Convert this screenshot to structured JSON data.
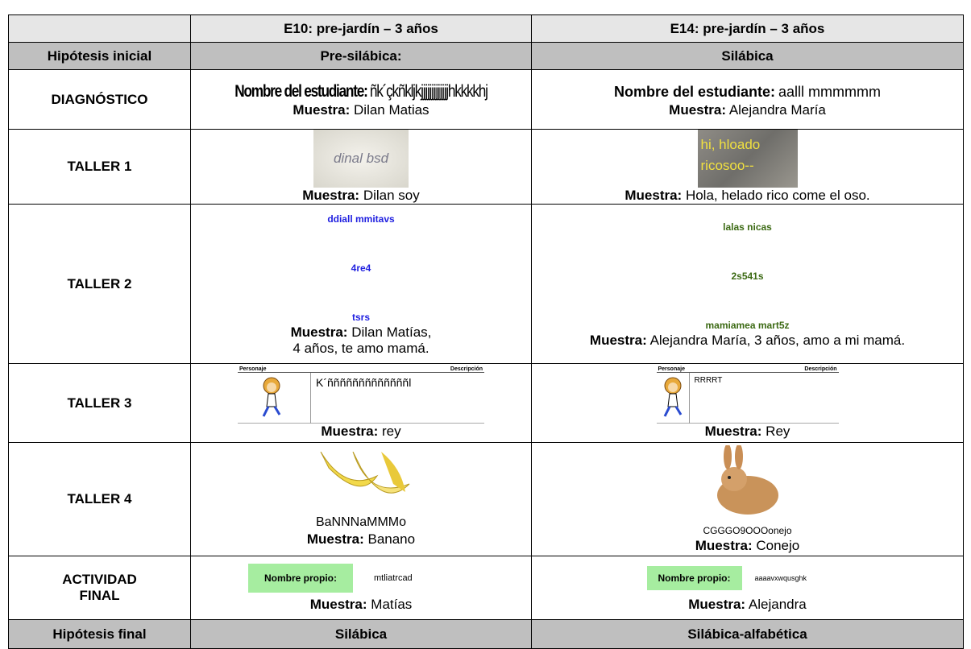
{
  "table": {
    "header": [
      "E10: pre-jardín – 3 años",
      "E14: pre-jardín – 3 años"
    ],
    "initial_hypothesis": {
      "label": "Hipótesis inicial",
      "values": [
        "Pre-silábica:",
        "Silábica"
      ]
    },
    "sample_label": "Muestra:",
    "rows": [
      {
        "label": "DIAGNÓSTICO",
        "cells": [
          {
            "image_text": [
              "Nombre del estudiante:",
              "ñk´çkñkljkjjjjjjjjjjjjjhkkkkhj"
            ],
            "sample": "Dilan Matias"
          },
          {
            "image_text": [
              "Nombre del estudiante:",
              "aalll mmmmmm"
            ],
            "sample": "Alejandra María"
          }
        ]
      },
      {
        "label": "TALLER 1",
        "cells": [
          {
            "image_text": [
              "dinal bsd"
            ],
            "sample": "Dilan soy"
          },
          {
            "image_text": [
              "hi, hloado",
              "ricosoo--"
            ],
            "sample": "Hola, helado rico come el oso."
          }
        ]
      },
      {
        "label": "TALLER 2",
        "cells": [
          {
            "image_text": [
              "ddiall mmitavs",
              "4re4",
              "tsrs"
            ],
            "sample": "Dilan Matías, 4 años, te amo mamá."
          },
          {
            "image_text": [
              "lalas nicas",
              "2s541s",
              "mamiamea mart5z"
            ],
            "sample": "Alejandra María, 3 años, amo a mi mamá."
          }
        ]
      },
      {
        "label": "TALLER 3",
        "cells": [
          {
            "image_text": [
              "Personaje",
              "Descripción",
              "K´ñññññññññññññl"
            ],
            "sample": "rey"
          },
          {
            "image_text": [
              "Personaje",
              "Descripción",
              "RRRRT"
            ],
            "sample": "Rey"
          }
        ]
      },
      {
        "label": "TALLER 4",
        "cells": [
          {
            "image_text": [
              "BaNNNaMMMo"
            ],
            "sample": "Banano"
          },
          {
            "image_text": [
              "CGGGO9OOOonejo"
            ],
            "sample": "Conejo"
          }
        ]
      },
      {
        "label": "ACTIVIDAD FINAL",
        "cells": [
          {
            "image_text": [
              "Nombre propio:",
              "mtliatrcad"
            ],
            "sample": "Matías"
          },
          {
            "image_text": [
              "Nombre propio:",
              "aaaavxwqusghk"
            ],
            "sample": "Alejandra"
          }
        ]
      }
    ],
    "final_hypothesis": {
      "label": "Hipótesis final",
      "values": [
        "Silábica",
        "Silábica-alfabética"
      ]
    }
  }
}
